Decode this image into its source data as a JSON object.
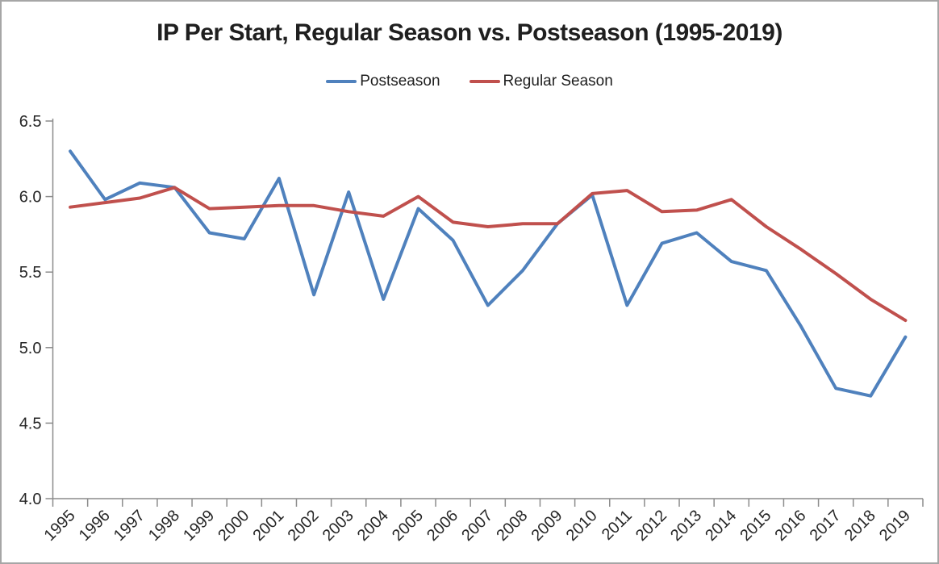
{
  "chart_data": {
    "type": "line",
    "title": "IP Per Start, Regular Season vs. Postseason (1995-2019)",
    "x": [
      "1995",
      "1996",
      "1997",
      "1998",
      "1999",
      "2000",
      "2001",
      "2002",
      "2003",
      "2004",
      "2005",
      "2006",
      "2007",
      "2008",
      "2009",
      "2010",
      "2011",
      "2012",
      "2013",
      "2014",
      "2015",
      "2016",
      "2017",
      "2018",
      "2019"
    ],
    "series": [
      {
        "name": "Postseason",
        "color": "#4F81BD",
        "values": [
          6.3,
          5.98,
          6.09,
          6.06,
          5.76,
          5.72,
          6.12,
          5.35,
          6.03,
          5.32,
          5.92,
          5.71,
          5.28,
          5.51,
          5.82,
          6.01,
          5.28,
          5.69,
          5.76,
          5.57,
          5.51,
          5.14,
          4.73,
          4.68,
          5.07
        ]
      },
      {
        "name": "Regular Season",
        "color": "#C0504D",
        "values": [
          5.93,
          5.96,
          5.99,
          6.06,
          5.92,
          5.93,
          5.94,
          5.94,
          5.9,
          5.87,
          6.0,
          5.83,
          5.8,
          5.82,
          5.82,
          6.02,
          6.04,
          5.9,
          5.91,
          5.98,
          5.8,
          5.65,
          5.49,
          5.32,
          5.18
        ]
      }
    ],
    "ylabel": "",
    "xlabel": "",
    "ylim": [
      4.0,
      6.5
    ],
    "yticks": [
      "4.0",
      "4.5",
      "5.0",
      "5.5",
      "6.0",
      "6.5"
    ],
    "grid": false,
    "legend_position": "top",
    "axis_color": "#8c8c8c",
    "text_color": "#262626"
  }
}
